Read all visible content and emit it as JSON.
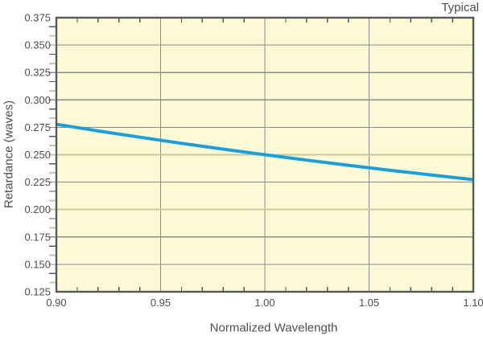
{
  "colors": {
    "background": "#ffffff",
    "plot_background": "#FCF9D5",
    "border": "#58595b",
    "grid_major": "#8c8c8c",
    "grid_highlight": "#cbc7a0",
    "tick": "#58595b",
    "tick_alt": "#cbc7a0",
    "line": "#1b9fdc",
    "text": "#4d4d4f"
  },
  "chart_data": {
    "type": "line",
    "annotation": "Typical",
    "xlabel": "Normalized Wavelength",
    "ylabel": "Retardance (waves)",
    "xlim": [
      0.9,
      1.1
    ],
    "ylim": [
      0.125,
      0.375
    ],
    "grid": "on",
    "legend": "none",
    "x_ticks": {
      "values": [
        0.9,
        0.95,
        1.0,
        1.05,
        1.1
      ],
      "labels": [
        "0.90",
        "0.95",
        "1.00",
        "1.05",
        "1.10"
      ],
      "minor_step": 0.01
    },
    "y_ticks": {
      "values": [
        0.375,
        0.35,
        0.325,
        0.3,
        0.275,
        0.25,
        0.225,
        0.2,
        0.175,
        0.15,
        0.125
      ],
      "labels": [
        "0.375",
        "0.350",
        "0.325",
        "0.300",
        "0.275",
        "0.250",
        "0.225",
        "0.200",
        "0.175",
        "0.150",
        "0.125"
      ],
      "minor_divisions": 3
    },
    "highlight_gridlines": [
      0.25,
      0.2
    ],
    "series": [
      {
        "name": "retardance",
        "x": [
          0.9,
          0.92,
          0.94,
          0.96,
          0.98,
          1.0,
          1.02,
          1.04,
          1.06,
          1.08,
          1.1
        ],
        "y": [
          0.2778,
          0.2717,
          0.266,
          0.2604,
          0.2551,
          0.25,
          0.2451,
          0.2404,
          0.2358,
          0.2315,
          0.2273
        ]
      }
    ]
  }
}
